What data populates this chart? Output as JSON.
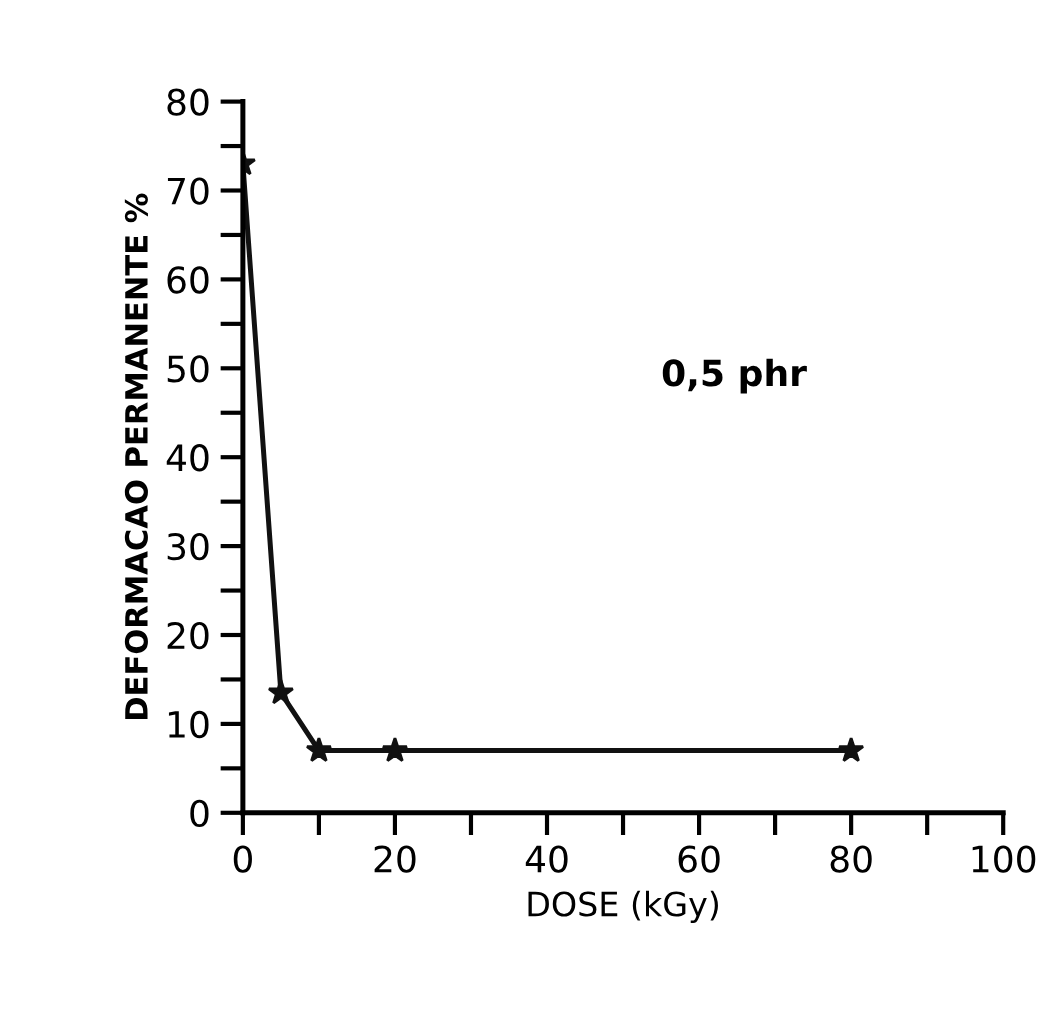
{
  "chart_data": {
    "type": "line",
    "xlabel": "DOSE (kGy)",
    "ylabel": "DEFORMACAO PERMANENTE %",
    "annotations": [
      "0,5 phr"
    ],
    "x": [
      0,
      5,
      10,
      20,
      80
    ],
    "series": [
      {
        "color": "#111111",
        "values": [
          73,
          13.5,
          7,
          7,
          7
        ]
      }
    ],
    "marker": "star",
    "line_style": "solid",
    "grid": false,
    "legend": false,
    "xlim": [
      0,
      100
    ],
    "ylim": [
      0,
      80
    ],
    "xticks": [
      0,
      {
        "value": 10,
        "label": null
      },
      20,
      {
        "value": 30,
        "label": null
      },
      40,
      {
        "value": 50,
        "label": null
      },
      60,
      {
        "value": 70,
        "label": null
      },
      80,
      {
        "value": 90,
        "label": null
      },
      100
    ],
    "yticks": [
      0,
      {
        "value": 5,
        "label": null
      },
      10,
      {
        "value": 15,
        "label": null
      },
      20,
      {
        "value": 25,
        "label": null
      },
      30,
      {
        "value": 35,
        "label": null
      },
      40,
      {
        "value": 45,
        "label": null
      },
      50,
      {
        "value": 55,
        "label": null
      },
      60,
      {
        "value": 65,
        "label": null
      },
      70,
      {
        "value": 75,
        "label": null
      },
      80
    ]
  }
}
